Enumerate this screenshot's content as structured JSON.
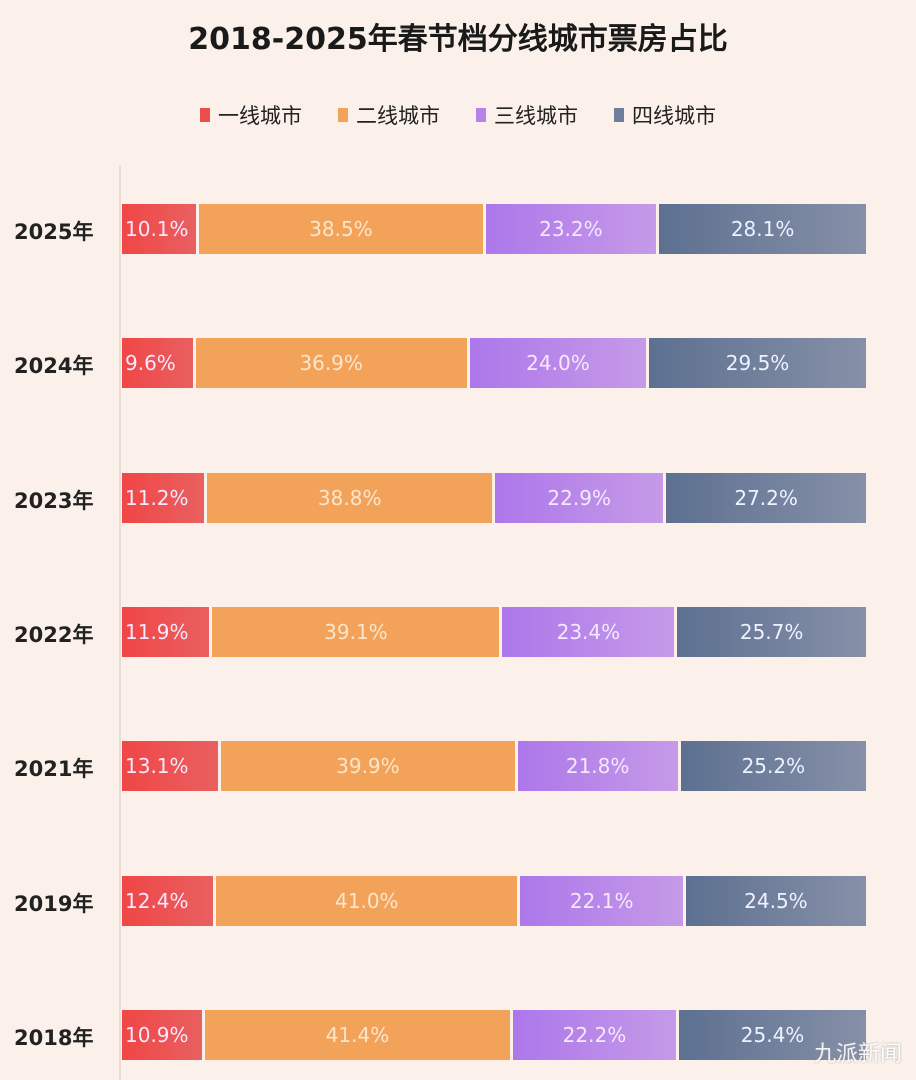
{
  "chart_data": {
    "type": "bar",
    "orientation": "horizontal-stacked",
    "title": "2018-2025年春节档分线城市票房占比",
    "categories": [
      "2025年",
      "2024年",
      "2023年",
      "2022年",
      "2021年",
      "2019年",
      "2018年"
    ],
    "series": [
      {
        "name": "一线城市",
        "color": "#ec4e4e",
        "values": [
          10.1,
          9.6,
          11.2,
          11.9,
          13.1,
          12.4,
          10.9
        ],
        "labels": [
          "10.1%",
          "9.6%",
          "11.2%",
          "11.9%",
          "13.1%",
          "12.4%",
          "10.9%"
        ]
      },
      {
        "name": "二线城市",
        "color": "#f3a25a",
        "values": [
          38.5,
          36.9,
          38.8,
          39.1,
          39.9,
          41.0,
          41.4
        ],
        "labels": [
          "38.5%",
          "36.9%",
          "38.8%",
          "39.1%",
          "39.9%",
          "41.0%",
          "41.4%"
        ]
      },
      {
        "name": "三线城市",
        "color": "#b683ea",
        "values": [
          23.2,
          24.0,
          22.9,
          23.4,
          21.8,
          22.1,
          22.2
        ],
        "labels": [
          "23.2%",
          "24.0%",
          "22.9%",
          "23.4%",
          "21.8%",
          "22.1%",
          "22.2%"
        ]
      },
      {
        "name": "四线城市",
        "color": "#6f7e9a",
        "values": [
          28.1,
          29.5,
          27.2,
          25.7,
          25.2,
          24.5,
          25.4
        ],
        "labels": [
          "28.1%",
          "29.5%",
          "27.2%",
          "25.7%",
          "25.2%",
          "24.5%",
          "25.4%"
        ]
      }
    ],
    "xlim": [
      0,
      100
    ],
    "legend_position": "top",
    "grid": false
  },
  "watermark": "九派新闻"
}
